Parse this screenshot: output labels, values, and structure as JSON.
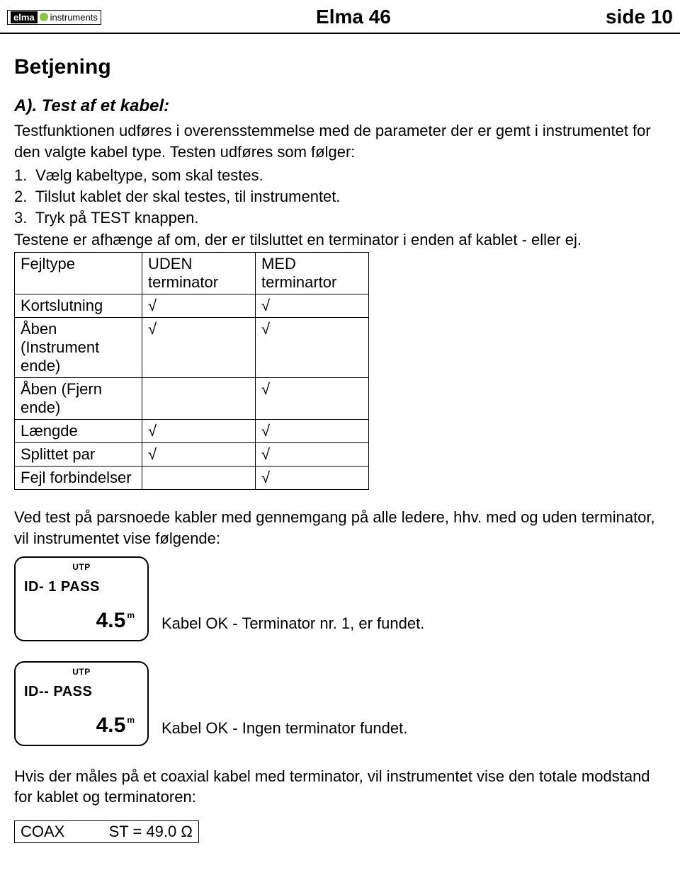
{
  "header": {
    "logo_part1": "elma",
    "logo_part2": "instruments",
    "title": "Elma 46",
    "page_label": "side 10"
  },
  "section": {
    "heading": "Betjening",
    "sub_heading": "A). Test af et kabel:",
    "intro": "Testfunktionen udføres i overensstemmelse med de parameter der er gemt i instrumentet for den valgte kabel type. Testen udføres som følger:",
    "steps": [
      "Vælg kabeltype, som skal testes.",
      "Tilslut kablet der skal testes, til instrumentet.",
      "Tryk på TEST knappen."
    ],
    "note": "Testene er afhænge af om, der er tilsluttet en terminator i enden af kablet - eller ej."
  },
  "table": {
    "headers": {
      "fejltype": "Fejltype",
      "uden_l1": "UDEN",
      "uden_l2": "terminator",
      "med_l1": "MED",
      "med_l2": "terminartor"
    },
    "rows": [
      {
        "label": "Kortslutning",
        "uden": "√",
        "med": "√"
      },
      {
        "label": "Åben (Instrument ende)",
        "uden": "√",
        "med": "√"
      },
      {
        "label": "Åben (Fjern ende)",
        "uden": "",
        "med": "√"
      },
      {
        "label": "Længde",
        "uden": "√",
        "med": "√"
      },
      {
        "label": "Splittet par",
        "uden": "√",
        "med": "√"
      },
      {
        "label": "Fejl forbindelser",
        "uden": "",
        "med": "√"
      }
    ]
  },
  "para_after_table": "Ved test på parsnoede kabler med gennemgang på alle ledere, hhv. med og uden terminator, vil instrumentet vise følgende:",
  "displays": [
    {
      "utp": "UTP",
      "id_line": "ID- 1 PASS",
      "value": "4.5",
      "unit": "m",
      "caption": "Kabel OK - Terminator nr. 1, er fundet."
    },
    {
      "utp": "UTP",
      "id_line": "ID-- PASS",
      "value": "4.5",
      "unit": "m",
      "caption": "Kabel OK - Ingen terminator fundet."
    }
  ],
  "coax_para": "Hvis der måles på et coaxial kabel med terminator, vil instrumentet vise den totale modstand for kablet og terminatoren:",
  "coax_box": {
    "left": "COAX",
    "right": "ST  = 49.0 Ω"
  }
}
